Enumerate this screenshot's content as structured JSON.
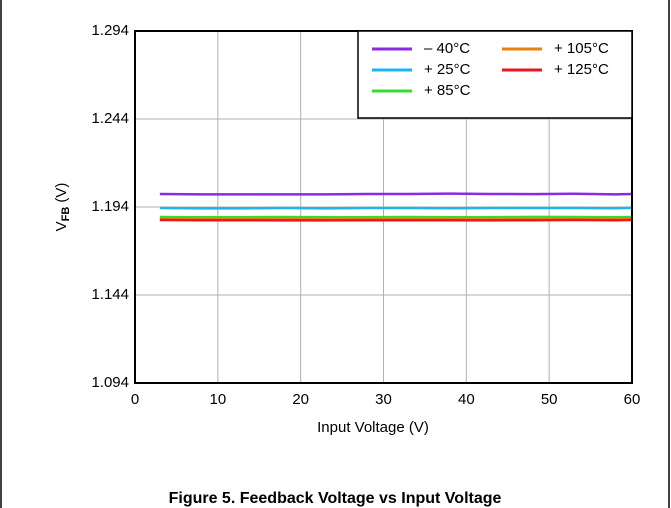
{
  "chart_data": {
    "type": "line",
    "caption": "Figure 5. Feedback Voltage vs Input Voltage",
    "x_label": "Input Voltage (V)",
    "y_label": {
      "main": "V",
      "sub": "FB",
      "unit": " (V)"
    },
    "x": [
      3,
      8,
      13,
      18,
      23,
      28,
      33,
      38,
      43,
      48,
      53,
      58,
      60
    ],
    "series": [
      {
        "name": "– 40°C",
        "color": "#8a2be2",
        "values": [
          1.2014,
          1.2012,
          1.2012,
          1.2012,
          1.2012,
          1.2014,
          1.2014,
          1.2016,
          1.2014,
          1.2013,
          1.2015,
          1.2012,
          1.2014
        ]
      },
      {
        "name": "+ 25°C",
        "color": "#1eb4f0",
        "values": [
          1.1934,
          1.1932,
          1.1932,
          1.1934,
          1.1932,
          1.1934,
          1.1934,
          1.1933,
          1.1934,
          1.1934,
          1.1934,
          1.1933,
          1.1936
        ]
      },
      {
        "name": "+ 85°C",
        "color": "#33dd33",
        "values": [
          1.1883,
          1.1882,
          1.1882,
          1.1883,
          1.1882,
          1.1882,
          1.1883,
          1.1882,
          1.1882,
          1.1884,
          1.1883,
          1.1882,
          1.1883
        ]
      },
      {
        "name": "+ 105°C",
        "color": "#e8820c",
        "values": [
          1.1872,
          1.1871,
          1.1871,
          1.1871,
          1.187,
          1.1871,
          1.1871,
          1.1871,
          1.187,
          1.1871,
          1.1872,
          1.1871,
          1.1872
        ]
      },
      {
        "name": "+ 125°C",
        "color": "#e41a1c",
        "values": [
          1.1866,
          1.1865,
          1.1865,
          1.1864,
          1.1864,
          1.1865,
          1.1865,
          1.1865,
          1.1864,
          1.1865,
          1.1866,
          1.1865,
          1.1866
        ]
      }
    ],
    "xlim": [
      0,
      60
    ],
    "xticks": [
      0,
      10,
      20,
      30,
      40,
      50,
      60
    ],
    "ylim": [
      1.094,
      1.294
    ],
    "yticks": [
      1.094,
      1.144,
      1.194,
      1.244,
      1.294
    ],
    "grid": true,
    "legend": "top-right"
  }
}
